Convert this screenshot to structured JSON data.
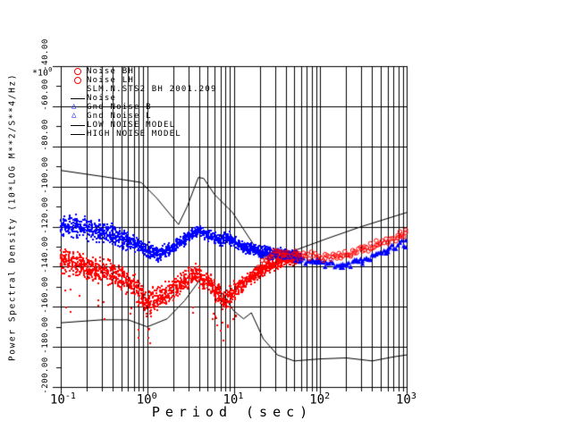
{
  "window": {
    "background": "#ffffff"
  },
  "legend": {
    "items": [
      {
        "icon": "circle-icon",
        "color": "#ff0000",
        "label": "Noise BH"
      },
      {
        "icon": "circle-icon",
        "color": "#ff0000",
        "label": "Noise LH"
      },
      {
        "icon": "none",
        "color": "#000000",
        "label": "SLM.N.STS2  BH  2001.209"
      },
      {
        "icon": "dash-icon",
        "color": "#000000",
        "label": "Noise"
      },
      {
        "icon": "triangle-icon",
        "color": "#0000ff",
        "label": "Gnd Noise B"
      },
      {
        "icon": "triangle-icon",
        "color": "#0000ff",
        "label": "Gnd Noise L"
      },
      {
        "icon": "dash-icon",
        "color": "#000000",
        "label": "LOW NOISE MODEL"
      },
      {
        "icon": "dash-icon",
        "color": "#000000",
        "label": "HIGH NOISE MODEL"
      }
    ]
  },
  "axes": {
    "x": {
      "title": "Period (sec)",
      "scale": "log",
      "ticks": [
        {
          "base": "10",
          "exp": "-1"
        },
        {
          "base": "10",
          "exp": "0"
        },
        {
          "base": "10",
          "exp": "1"
        },
        {
          "base": "10",
          "exp": "2"
        },
        {
          "base": "10",
          "exp": "3"
        }
      ]
    },
    "y": {
      "title": "Power Spectral Density (10*LOG M**2/S**4/Hz)",
      "multiplier_base": "*10",
      "multiplier_exp": "0",
      "tick_labels": [
        "-40.00",
        "-60.00",
        "-80.00",
        "-100.00",
        "-120.00",
        "-140.00",
        "-160.00",
        "-180.00",
        "-200.00"
      ],
      "tick_values": [
        -40,
        -60,
        -80,
        -100,
        -120,
        -140,
        -160,
        -180,
        -200
      ]
    }
  },
  "chart_data": {
    "type": "scatter",
    "title": "SLM.N.STS2  BH  2001.209",
    "xlabel": "Period (sec)",
    "ylabel": "Power Spectral Density (10*LOG M**2/S**4/Hz)",
    "x_scale": "log",
    "xlim": [
      0.1,
      1000
    ],
    "ylim": [
      -200,
      -40
    ],
    "grid": {
      "x_minor_lines": true,
      "y_major_lines": true,
      "color": "#000000"
    },
    "series": [
      {
        "name": "Gnd Noise B",
        "color": "#0000ff",
        "marker": "pixel",
        "band": [
          [
            0.1,
            -119,
            8
          ],
          [
            0.2,
            -121,
            7
          ],
          [
            0.4,
            -124,
            7
          ],
          [
            0.7,
            -128,
            6
          ],
          [
            1.0,
            -132,
            5
          ],
          [
            1.4,
            -134,
            5
          ],
          [
            2.0,
            -130,
            5
          ],
          [
            3.0,
            -125,
            4
          ],
          [
            4.0,
            -122,
            4
          ],
          [
            5.5,
            -125,
            4
          ],
          [
            7.0,
            -127,
            4
          ],
          [
            8.5,
            -125,
            4
          ],
          [
            10,
            -128,
            4
          ],
          [
            15,
            -131,
            4
          ],
          [
            25,
            -133,
            4
          ],
          [
            40,
            -134,
            4
          ],
          [
            60,
            -135,
            3
          ]
        ]
      },
      {
        "name": "Noise BH",
        "color": "#ff0000",
        "marker": "pixel",
        "outliers": true,
        "band": [
          [
            0.1,
            -137,
            9
          ],
          [
            0.2,
            -140,
            9
          ],
          [
            0.4,
            -143,
            9
          ],
          [
            0.7,
            -149,
            8
          ],
          [
            1.0,
            -158,
            9
          ],
          [
            1.5,
            -155,
            8
          ],
          [
            2.5,
            -148,
            7
          ],
          [
            3.5,
            -144,
            7
          ],
          [
            5.0,
            -147,
            7
          ],
          [
            8.0,
            -157,
            8
          ],
          [
            10,
            -153,
            7
          ],
          [
            15,
            -146,
            5
          ],
          [
            25,
            -140,
            4
          ],
          [
            40,
            -137,
            4
          ],
          [
            60,
            -136,
            3
          ]
        ]
      },
      {
        "name": "Gnd Noise L",
        "color": "#0000ff",
        "marker": "triangle",
        "band": [
          [
            12,
            -130,
            4
          ],
          [
            20,
            -133,
            4
          ],
          [
            30,
            -133,
            4
          ],
          [
            80,
            -137,
            3
          ],
          [
            170,
            -140,
            3
          ],
          [
            350,
            -136,
            3
          ],
          [
            700,
            -131,
            3
          ],
          [
            1000,
            -128,
            3
          ]
        ]
      },
      {
        "name": "Noise LH",
        "color": "#ff0000",
        "marker": "circle",
        "band": [
          [
            12,
            -149,
            5
          ],
          [
            16,
            -144,
            4
          ],
          [
            22,
            -139,
            4
          ],
          [
            30,
            -133,
            3
          ],
          [
            80,
            -135,
            3
          ],
          [
            170,
            -135,
            3
          ],
          [
            350,
            -131,
            3
          ],
          [
            700,
            -126,
            3
          ],
          [
            1000,
            -122,
            3
          ]
        ]
      }
    ],
    "models": [
      {
        "name": "HIGH NOISE MODEL",
        "color": "#000000",
        "points": [
          [
            0.1,
            -92
          ],
          [
            0.3,
            -95
          ],
          [
            0.85,
            -98
          ],
          [
            1.3,
            -106
          ],
          [
            2.3,
            -119
          ],
          [
            2.9,
            -110
          ],
          [
            3.9,
            -95.5
          ],
          [
            4.5,
            -96
          ],
          [
            6,
            -104
          ],
          [
            9.7,
            -113
          ],
          [
            17,
            -129
          ],
          [
            25,
            -137
          ],
          [
            50,
            -132
          ],
          [
            120,
            -126
          ],
          [
            300,
            -120
          ],
          [
            1000,
            -113
          ]
        ]
      },
      {
        "name": "LOW NOISE MODEL",
        "color": "#000000",
        "points": [
          [
            0.1,
            -168
          ],
          [
            0.3,
            -166.5
          ],
          [
            0.6,
            -166.5
          ],
          [
            1.0,
            -170
          ],
          [
            1.7,
            -166
          ],
          [
            2.7,
            -157
          ],
          [
            4.0,
            -147
          ],
          [
            5.0,
            -146
          ],
          [
            7.0,
            -152
          ],
          [
            10,
            -162
          ],
          [
            13,
            -166
          ],
          [
            16,
            -163
          ],
          [
            22,
            -176
          ],
          [
            32,
            -184
          ],
          [
            50,
            -187
          ],
          [
            100,
            -186
          ],
          [
            200,
            -185.5
          ],
          [
            400,
            -187
          ],
          [
            700,
            -185
          ],
          [
            1000,
            -184
          ]
        ]
      }
    ]
  }
}
